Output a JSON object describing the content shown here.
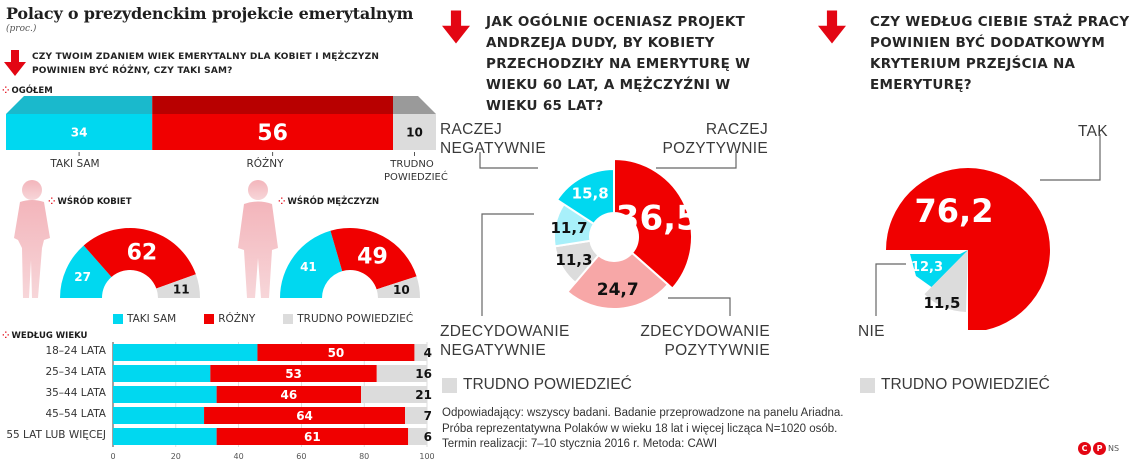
{
  "header": {
    "title": "Polacy o prezydenckim projekcie emerytalnym",
    "subtitle": "(proc.)"
  },
  "colors": {
    "taki_sam": "#00d8f0",
    "rozny": "#f00000",
    "trudno": "#dcdcdc",
    "raczej_neg": "#00d8f0",
    "zdec_neg": "#a8f0fa",
    "raczej_poz": "#f00000",
    "zdec_poz": "#f7a7a7",
    "silhouette": "#f2b8bd",
    "accent": "#e30613"
  },
  "panel1": {
    "question": "Czy twoim zdaniem wiek emerytalny dla kobiet i mężczyzn powinien być różny, czy taki sam?",
    "overall_label": "Ogółem",
    "overall_labels": [
      "TAKI SAM",
      "RÓŻNY",
      "TRUDNO POWIEDZIEĆ"
    ],
    "women_label": "Wśród kobiet",
    "men_label": "Wśród mężczyzn",
    "legend": [
      "TAKI SAM",
      "RÓŻNY",
      "TRUDNO POWIEDZIEĆ"
    ],
    "age_label": "Według wieku",
    "age_groups": [
      "18–24 LATA",
      "25–34 LATA",
      "35–44 LATA",
      "45–54 LATA",
      "55 LAT LUB WIĘCEJ"
    ],
    "axis_ticks": [
      "0",
      "20",
      "40",
      "60",
      "80",
      "100"
    ]
  },
  "panel2": {
    "question": "Jak ogólnie oceniasz projekt Andrzeja Dudy, by kobiety przechodziły na emeryturę w wieku 60 lat, a mężczyźni w wieku 65 lat?",
    "label_raczej_neg": "RACZEJ NEGATYWNIE",
    "label_raczej_poz": "RACZEJ POZYTYWNIE",
    "label_zdec_neg": "ZDECYDOWANIE NEGATYWNIE",
    "label_zdec_poz": "ZDECYDOWANIE POZYTYWNIE",
    "legend": "TRUDNO POWIEDZIEĆ"
  },
  "panel3": {
    "question": "Czy według ciebie staż pracy powinien być dodatkowym kryterium przejścia na emeryturę?",
    "label_tak": "TAK",
    "label_nie": "NIE",
    "legend": "TRUDNO POWIEDZIEĆ"
  },
  "footer": {
    "line1": "Odpowiadający: wszyscy badani. Badanie przeprowadzone na panelu Ariadna.",
    "line2": "Próba reprezentatywna Polaków w wieku 18 lat i więcej licząca N=1020 osób.",
    "line3": "Termin realizacji: 7–10 stycznia 2016 r. Metoda: CAWI",
    "credit": "NS"
  },
  "chart_data": [
    {
      "type": "bar",
      "title": "Czy twoim zdaniem wiek emerytalny dla kobiet i mężczyzn powinien być różny, czy taki sam? — Ogółem",
      "orientation": "horizontal-stacked",
      "categories": [
        "Ogółem"
      ],
      "series": [
        {
          "name": "TAKI SAM",
          "values": [
            34
          ]
        },
        {
          "name": "RÓŻNY",
          "values": [
            56
          ]
        },
        {
          "name": "TRUDNO POWIEDZIEĆ",
          "values": [
            10
          ]
        }
      ],
      "unit": "%"
    },
    {
      "type": "pie",
      "title": "Wśród kobiet",
      "style": "half-donut",
      "labels": [
        "TAKI SAM",
        "RÓŻNY",
        "TRUDNO POWIEDZIEĆ"
      ],
      "values": [
        27,
        62,
        11
      ]
    },
    {
      "type": "pie",
      "title": "Wśród mężczyzn",
      "style": "half-donut",
      "labels": [
        "TAKI SAM",
        "RÓŻNY",
        "TRUDNO POWIEDZIEĆ"
      ],
      "values": [
        41,
        49,
        10
      ]
    },
    {
      "type": "bar",
      "title": "Według wieku",
      "orientation": "horizontal-stacked",
      "categories": [
        "18–24 LATA",
        "25–34 LATA",
        "35–44 LATA",
        "45–54 LATA",
        "55 LAT LUB WIĘCEJ"
      ],
      "series": [
        {
          "name": "TAKI SAM",
          "values": [
            46,
            31,
            33,
            29,
            33
          ],
          "labeled": false
        },
        {
          "name": "RÓŻNY",
          "values": [
            50,
            53,
            46,
            64,
            61
          ]
        },
        {
          "name": "TRUDNO POWIEDZIEĆ",
          "values": [
            4,
            16,
            21,
            7,
            6
          ]
        }
      ],
      "xlim": [
        0,
        100
      ],
      "xticks": [
        0,
        20,
        40,
        60,
        80,
        100
      ],
      "grid": true
    },
    {
      "type": "pie",
      "title": "Jak ogólnie oceniasz projekt Andrzeja Dudy, by kobiety przechodziły na emeryturę w wieku 60 lat, a mężczyźni w wieku 65 lat?",
      "style": "donut",
      "labels": [
        "RACZEJ POZYTYWNIE",
        "ZDECYDOWANIE POZYTYWNIE",
        "TRUDNO POWIEDZIEĆ",
        "ZDECYDOWANIE NEGATYWNIE",
        "RACZEJ NEGATYWNIE"
      ],
      "values": [
        36.5,
        24.7,
        11.3,
        11.7,
        15.8
      ],
      "display": [
        "36,5",
        "24,7",
        "11,3",
        "11,7",
        "15,8"
      ]
    },
    {
      "type": "pie",
      "title": "Czy według ciebie staż pracy powinien być dodatkowym kryterium przejścia na emeryturę?",
      "style": "radial",
      "labels": [
        "TAK",
        "TRUDNO POWIEDZIEĆ",
        "NIE"
      ],
      "values": [
        76.2,
        11.5,
        12.3
      ],
      "display": [
        "76,2",
        "11,5",
        "12,3"
      ]
    }
  ]
}
